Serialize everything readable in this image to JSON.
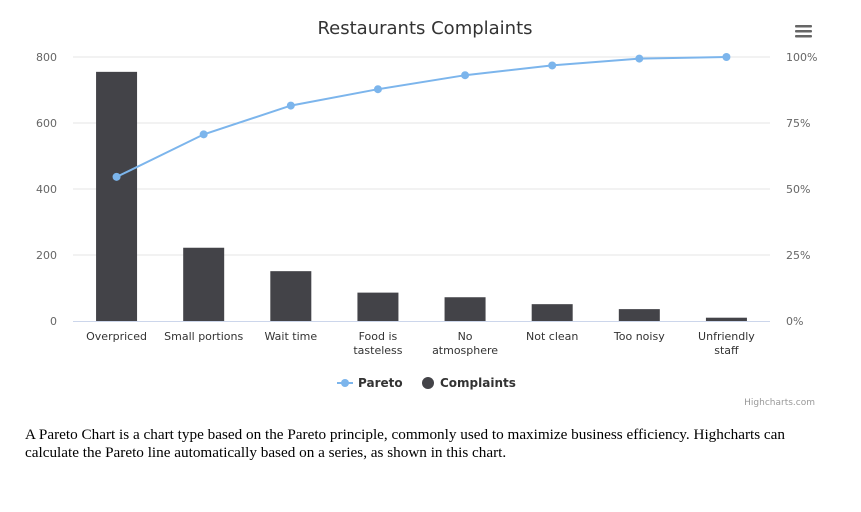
{
  "chart_data": {
    "type": "bar",
    "title": "Restaurants Complaints",
    "categories": [
      "Overpriced",
      "Small portions",
      "Wait time",
      "Food is tasteless",
      "No atmosphere",
      "Not clean",
      "Too noisy",
      "Unfriendly staff"
    ],
    "series": [
      {
        "name": "Complaints",
        "type": "bar",
        "axis": "left",
        "color": "#434348",
        "values": [
          755,
          222,
          151,
          86,
          72,
          51,
          36,
          10
        ]
      },
      {
        "name": "Pareto",
        "type": "line",
        "axis": "right",
        "color": "#7cb5ec",
        "values": [
          54.6,
          70.7,
          81.6,
          87.8,
          93.1,
          96.8,
          99.4,
          100
        ]
      }
    ],
    "y_left": {
      "min": 0,
      "max": 800,
      "ticks": [
        "0",
        "200",
        "400",
        "600",
        "800"
      ]
    },
    "y_right": {
      "min": 0,
      "max": 100,
      "ticks": [
        "0%",
        "25%",
        "50%",
        "75%",
        "100%"
      ]
    },
    "legend": {
      "position": "bottom-center",
      "items": [
        "Pareto",
        "Complaints"
      ]
    },
    "grid": true
  },
  "credits": "Highcharts.com",
  "menu_icon": "hamburger-menu-icon",
  "description": "A Pareto Chart is a chart type based on the Pareto principle, commonly used to maximize business efficiency. Highcharts can calculate the Pareto line automatically based on a series, as shown in this chart."
}
